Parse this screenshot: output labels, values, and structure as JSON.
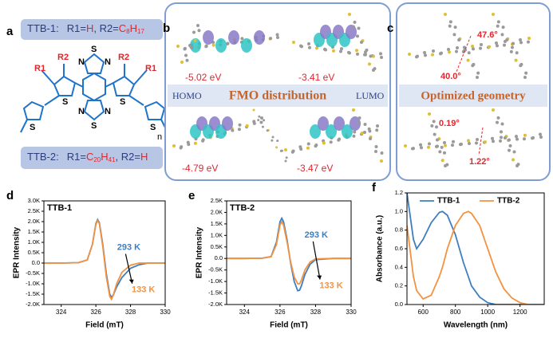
{
  "panel_a": {
    "label": "a",
    "ttb1": {
      "name": "TTB-1:",
      "parts": [
        "R1=",
        "H",
        ", R2=",
        "C",
        "8",
        "H",
        "17"
      ]
    },
    "ttb2": {
      "name": "TTB-2:",
      "parts": [
        "R1=",
        "C",
        "20",
        "H",
        "41",
        ", R2=",
        "H"
      ]
    },
    "molecule_labels": [
      "R1",
      "R2",
      "R2",
      "R1",
      "S",
      "N",
      "N",
      "S",
      "N",
      "N",
      "S",
      "S",
      "S",
      "S",
      "n"
    ]
  },
  "panel_b": {
    "label": "b",
    "energies": [
      "-5.02 eV",
      "-3.41 eV",
      "-4.79 eV",
      "-3.47 eV"
    ],
    "homo": "HOMO",
    "title": "FMO distribution",
    "lumo": "LUMO"
  },
  "panel_c": {
    "label": "c",
    "title": "Optimized geometry",
    "angles": [
      "47.6°",
      "40.0°",
      "0.19°",
      "1.22°"
    ]
  },
  "chart_data": [
    {
      "type": "line",
      "panel": "d",
      "title": "TTB-1",
      "x_label": "Field (mT)",
      "y_label": "EPR Intensity",
      "x": [
        323,
        324,
        325,
        325.5,
        325.8,
        326.0,
        326.1,
        326.2,
        326.4,
        326.6,
        326.8,
        326.9,
        327.0,
        327.2,
        327.5,
        328,
        328.5,
        329,
        330
      ],
      "series": [
        {
          "name": "293 K",
          "color": "#3d7fc0",
          "values": [
            0,
            0,
            20,
            150,
            900,
            1900,
            2100,
            1950,
            900,
            -500,
            -1500,
            -1650,
            -1550,
            -1150,
            -700,
            -250,
            -80,
            0,
            0
          ]
        },
        {
          "name": "133 K",
          "color": "#f39240",
          "values": [
            0,
            0,
            20,
            150,
            900,
            1850,
            2050,
            1900,
            800,
            -650,
            -1600,
            -1750,
            -1550,
            -1000,
            -450,
            -100,
            0,
            0,
            0
          ]
        }
      ],
      "xlim": [
        323,
        330
      ],
      "xticks": [
        324,
        326,
        328,
        330
      ],
      "ylim": [
        -2000,
        3000
      ],
      "yticks": [
        {
          "value": -2000,
          "label": "-2.0K"
        },
        {
          "value": -1500,
          "label": "-1.5K"
        },
        {
          "value": -1000,
          "label": "-1.0K"
        },
        {
          "value": -500,
          "label": "-0.5K"
        },
        {
          "value": 0,
          "label": "0.0"
        },
        {
          "value": 500,
          "label": "0.5K"
        },
        {
          "value": 1000,
          "label": "1.0K"
        },
        {
          "value": 1500,
          "label": "1.5K"
        },
        {
          "value": 2000,
          "label": "2.0K"
        },
        {
          "value": 2500,
          "label": "2.5K"
        },
        {
          "value": 3000,
          "label": "3.0K"
        }
      ]
    },
    {
      "type": "line",
      "panel": "e",
      "title": "TTB-2",
      "x_label": "Field (mT)",
      "y_label": "EPR Intensity",
      "x": [
        323,
        324,
        325,
        325.5,
        325.8,
        326.0,
        326.1,
        326.2,
        326.4,
        326.6,
        326.8,
        327.0,
        327.1,
        327.2,
        327.4,
        327.7,
        328,
        329,
        330
      ],
      "series": [
        {
          "name": "293 K",
          "color": "#3d7fc0",
          "values": [
            0,
            0,
            10,
            80,
            700,
            1600,
            1750,
            1600,
            800,
            -200,
            -1000,
            -1400,
            -1380,
            -1200,
            -700,
            -250,
            -50,
            0,
            0
          ]
        },
        {
          "name": "133 K",
          "color": "#f39240",
          "values": [
            0,
            0,
            10,
            70,
            600,
            1450,
            1600,
            1450,
            700,
            -150,
            -800,
            -1100,
            -1100,
            -950,
            -500,
            -150,
            -20,
            0,
            0
          ]
        }
      ],
      "xlim": [
        323,
        330
      ],
      "xticks": [
        324,
        326,
        328,
        330
      ],
      "ylim": [
        -2000,
        2500
      ],
      "yticks": [
        {
          "value": -2000,
          "label": "-2.0K"
        },
        {
          "value": -1500,
          "label": "-1.5K"
        },
        {
          "value": -1000,
          "label": "-1.0K"
        },
        {
          "value": -500,
          "label": "-0.5K"
        },
        {
          "value": 0,
          "label": "0.0"
        },
        {
          "value": 500,
          "label": "0.5K"
        },
        {
          "value": 1000,
          "label": "1.0K"
        },
        {
          "value": 1500,
          "label": "1.5K"
        },
        {
          "value": 2000,
          "label": "2.0K"
        },
        {
          "value": 2500,
          "label": "2.5K"
        }
      ]
    },
    {
      "type": "line",
      "panel": "f",
      "x_label": "Wavelength (nm)",
      "y_label": "Absorbance (a.u.)",
      "legend": "upper center",
      "x": [
        500,
        540,
        560,
        600,
        650,
        700,
        720,
        750,
        800,
        850,
        880,
        900,
        950,
        1000,
        1050,
        1100,
        1150,
        1200,
        1250,
        1300,
        1350
      ],
      "series": [
        {
          "name": "TTB-1",
          "color": "#3d7fc0",
          "values": [
            1.2,
            0.7,
            0.6,
            0.7,
            0.88,
            0.99,
            1.0,
            0.96,
            0.75,
            0.45,
            0.3,
            0.2,
            0.08,
            0.02,
            0,
            0,
            0,
            0,
            0,
            0,
            0
          ]
        },
        {
          "name": "TTB-2",
          "color": "#f39240",
          "values": [
            0.85,
            0.3,
            0.15,
            0.06,
            0.1,
            0.3,
            0.4,
            0.6,
            0.85,
            0.98,
            1.0,
            0.98,
            0.85,
            0.6,
            0.35,
            0.17,
            0.07,
            0.02,
            0,
            0,
            0
          ]
        }
      ],
      "xlim": [
        500,
        1350
      ],
      "xticks": [
        600,
        800,
        1000,
        1200
      ],
      "ylim": [
        0,
        1.2
      ],
      "yticks": [
        {
          "value": 0,
          "label": "0.0"
        },
        0.2,
        0.4,
        0.6,
        0.8,
        {
          "value": 1,
          "label": "1.0"
        },
        1.2
      ]
    }
  ]
}
